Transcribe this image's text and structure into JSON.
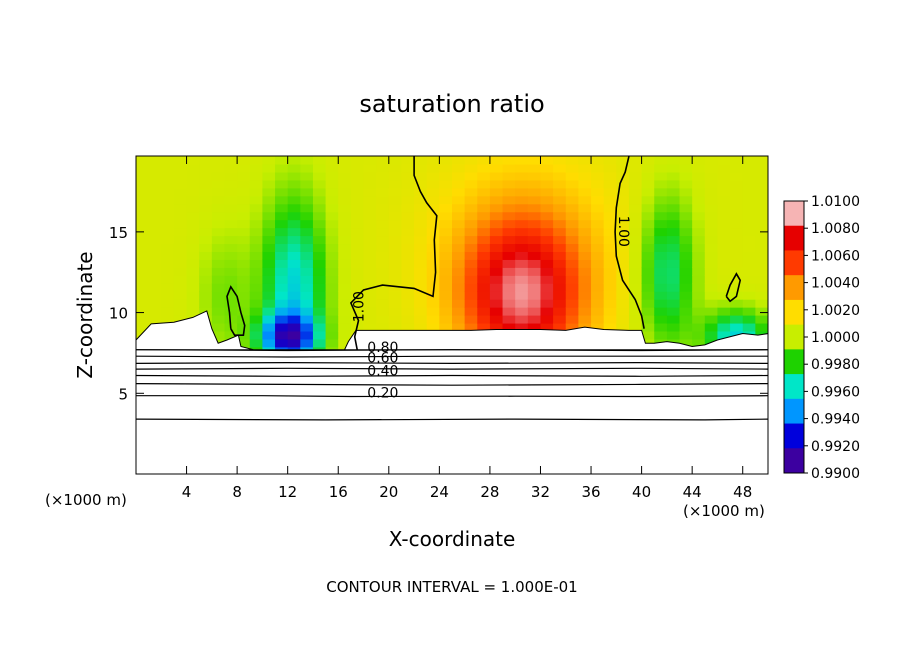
{
  "chart_data": {
    "type": "heatmap",
    "title": "saturation ratio",
    "xlabel": "X-coordinate",
    "ylabel": "Z-coordinate",
    "x_unit_left": "(×1000 m)",
    "x_unit_right": "(×1000 m)",
    "footer": "CONTOUR INTERVAL = 1.000E-01",
    "xlim": [
      0,
      50
    ],
    "ylim": [
      0,
      19.7
    ],
    "x_ticks": [
      4,
      8,
      12,
      16,
      20,
      24,
      28,
      32,
      36,
      40,
      44,
      48
    ],
    "x_tick_labels": [
      "4",
      "8",
      "12",
      "16",
      "20",
      "24",
      "28",
      "32",
      "36",
      "40",
      "44",
      "48"
    ],
    "y_ticks": [
      5,
      10,
      15
    ],
    "y_tick_labels": [
      "5",
      "10",
      "15"
    ],
    "colorbar": {
      "min": 0.99,
      "max": 1.01,
      "tick_values": [
        1.01,
        1.008,
        1.006,
        1.004,
        1.002,
        1.0,
        0.998,
        0.996,
        0.994,
        0.992,
        0.99
      ],
      "tick_labels": [
        "1.0100",
        "1.0080",
        "1.0060",
        "1.0040",
        "1.0020",
        "1.0000",
        "0.9980",
        "0.9960",
        "0.9940",
        "0.9920",
        "0.9900"
      ],
      "colors": [
        "#f6b4b4",
        "#e60000",
        "#ff3a00",
        "#ff9a00",
        "#ffdd00",
        "#c8ee00",
        "#1ed200",
        "#00e6c8",
        "#0096ff",
        "#0000dc",
        "#3c00a0"
      ]
    },
    "field": {
      "background_value": 1.0005,
      "features": [
        {
          "type": "moist",
          "x": 30.5,
          "z": 11.0,
          "sx": 3.5,
          "sz": 3.5,
          "amp": 0.0075
        },
        {
          "type": "moist",
          "x": 31.0,
          "z": 14.0,
          "sx": 6.0,
          "sz": 5.0,
          "amp": 0.002
        },
        {
          "type": "dry",
          "x": 12.5,
          "z": 11.5,
          "sx": 1.8,
          "sz": 4.0,
          "amp": -0.005
        },
        {
          "type": "dry",
          "x": 12.0,
          "z": 8.5,
          "sx": 1.6,
          "sz": 1.0,
          "amp": -0.007
        },
        {
          "type": "dry",
          "x": 42.0,
          "z": 12.5,
          "sx": 1.6,
          "sz": 3.5,
          "amp": -0.004
        },
        {
          "type": "dry",
          "x": 47.5,
          "z": 8.5,
          "sx": 1.8,
          "sz": 1.2,
          "amp": -0.005
        },
        {
          "type": "dry",
          "x": 7.0,
          "z": 11.0,
          "sx": 1.5,
          "sz": 3.0,
          "amp": -0.0015
        }
      ]
    },
    "contour_labels": [
      {
        "text": "1.00",
        "x": 18.0,
        "z": 9.4,
        "angle": -90
      },
      {
        "text": "1.00",
        "x": 38.2,
        "z": 16.0,
        "angle": 90
      },
      {
        "text": "0.80",
        "x": 18.3,
        "z": 7.55,
        "angle": 0
      },
      {
        "text": "0.60",
        "x": 18.3,
        "z": 6.9,
        "angle": 0
      },
      {
        "text": "0.40",
        "x": 18.3,
        "z": 6.1,
        "angle": 0
      },
      {
        "text": "0.20",
        "x": 18.3,
        "z": 4.75,
        "angle": 0
      }
    ],
    "contour_lines": [
      {
        "level": 0.2,
        "points": [
          [
            0,
            4.85
          ],
          [
            10,
            4.85
          ],
          [
            17,
            4.8
          ],
          [
            30,
            4.82
          ],
          [
            40,
            4.8
          ],
          [
            50,
            4.85
          ]
        ]
      },
      {
        "level": 0.3,
        "points": [
          [
            0,
            3.4
          ],
          [
            15,
            3.35
          ],
          [
            30,
            3.4
          ],
          [
            45,
            3.35
          ],
          [
            50,
            3.4
          ]
        ]
      },
      {
        "level": 0.4,
        "points": [
          [
            0,
            5.6
          ],
          [
            12,
            5.55
          ],
          [
            25,
            5.5
          ],
          [
            40,
            5.55
          ],
          [
            50,
            5.6
          ]
        ]
      },
      {
        "level": 0.5,
        "points": [
          [
            0,
            6.1
          ],
          [
            12,
            6.05
          ],
          [
            25,
            6.1
          ],
          [
            40,
            6.05
          ],
          [
            50,
            6.1
          ]
        ]
      },
      {
        "level": 0.6,
        "points": [
          [
            0,
            6.5
          ],
          [
            12,
            6.55
          ],
          [
            25,
            6.5
          ],
          [
            40,
            6.55
          ],
          [
            50,
            6.5
          ]
        ]
      },
      {
        "level": 0.7,
        "points": [
          [
            0,
            6.85
          ],
          [
            12,
            6.9
          ],
          [
            25,
            6.85
          ],
          [
            40,
            6.9
          ],
          [
            50,
            6.85
          ]
        ]
      },
      {
        "level": 0.8,
        "points": [
          [
            0,
            7.3
          ],
          [
            12,
            7.25
          ],
          [
            25,
            7.3
          ],
          [
            40,
            7.3
          ],
          [
            50,
            7.3
          ]
        ]
      },
      {
        "level": 0.9,
        "points": [
          [
            0,
            7.7
          ],
          [
            12,
            7.65
          ],
          [
            25,
            7.7
          ],
          [
            40,
            7.65
          ],
          [
            50,
            7.7
          ]
        ]
      },
      {
        "level": 1.0,
        "points": [
          [
            17.5,
            7.7
          ],
          [
            17.3,
            8.5
          ],
          [
            17.6,
            9.5
          ],
          [
            17.0,
            10.6
          ],
          [
            18.0,
            11.4
          ],
          [
            19.5,
            11.7
          ],
          [
            22.0,
            11.5
          ],
          [
            23.5,
            11.0
          ],
          [
            23.7,
            12.5
          ],
          [
            23.6,
            14.5
          ],
          [
            23.8,
            16.0
          ],
          [
            23.0,
            16.8
          ],
          [
            22.5,
            17.5
          ],
          [
            22.0,
            18.5
          ],
          [
            22.0,
            19.7
          ]
        ]
      },
      {
        "level": 1.0,
        "points": [
          [
            39.0,
            19.7
          ],
          [
            38.7,
            18.7
          ],
          [
            38.3,
            18.0
          ],
          [
            38.0,
            16.5
          ],
          [
            37.9,
            15.0
          ],
          [
            38.0,
            13.5
          ],
          [
            38.5,
            12.0
          ],
          [
            39.5,
            10.8
          ],
          [
            40.0,
            9.8
          ],
          [
            40.2,
            9.0
          ]
        ]
      },
      {
        "level": 1.0,
        "points": [
          [
            7.5,
            9.0
          ],
          [
            7.4,
            10.0
          ],
          [
            7.2,
            11.0
          ],
          [
            7.5,
            11.6
          ],
          [
            8.0,
            11.0
          ],
          [
            8.3,
            10.0
          ],
          [
            8.6,
            9.2
          ],
          [
            8.5,
            8.6
          ],
          [
            7.8,
            8.6
          ],
          [
            7.5,
            9.0
          ]
        ]
      },
      {
        "level": 1.0,
        "points": [
          [
            46.7,
            11.0
          ],
          [
            47.0,
            11.7
          ],
          [
            47.5,
            12.4
          ],
          [
            47.8,
            12.0
          ],
          [
            47.5,
            11.0
          ],
          [
            47.0,
            10.7
          ],
          [
            46.7,
            11.0
          ]
        ]
      }
    ],
    "cloud_region": {
      "description": "white saturated cloud layer above stable contours",
      "outline": [
        [
          0,
          8.3
        ],
        [
          1.2,
          9.3
        ],
        [
          3.0,
          9.4
        ],
        [
          4.5,
          9.7
        ],
        [
          5.6,
          10.1
        ],
        [
          6.0,
          9.0
        ],
        [
          6.5,
          8.1
        ],
        [
          7.2,
          8.3
        ],
        [
          8.1,
          8.6
        ],
        [
          8.3,
          7.9
        ],
        [
          9.3,
          7.7
        ],
        [
          16.5,
          7.7
        ],
        [
          16.8,
          8.2
        ],
        [
          17.4,
          8.9
        ],
        [
          22.0,
          8.9
        ],
        [
          24.5,
          8.9
        ],
        [
          26.5,
          8.9
        ],
        [
          28.5,
          8.95
        ],
        [
          30.0,
          8.95
        ],
        [
          32.0,
          8.95
        ],
        [
          34.0,
          8.9
        ],
        [
          35.5,
          9.1
        ],
        [
          37.0,
          8.95
        ],
        [
          39.0,
          8.9
        ],
        [
          40.0,
          8.9
        ],
        [
          40.3,
          8.1
        ],
        [
          41.0,
          8.1
        ],
        [
          42.0,
          8.2
        ],
        [
          43.0,
          8.1
        ],
        [
          44.0,
          7.9
        ],
        [
          45.0,
          8.0
        ],
        [
          46.0,
          8.3
        ],
        [
          47.0,
          8.5
        ],
        [
          48.0,
          8.7
        ],
        [
          49.2,
          8.6
        ],
        [
          50,
          8.7
        ],
        [
          50,
          7.7
        ],
        [
          0,
          7.7
        ]
      ]
    }
  }
}
